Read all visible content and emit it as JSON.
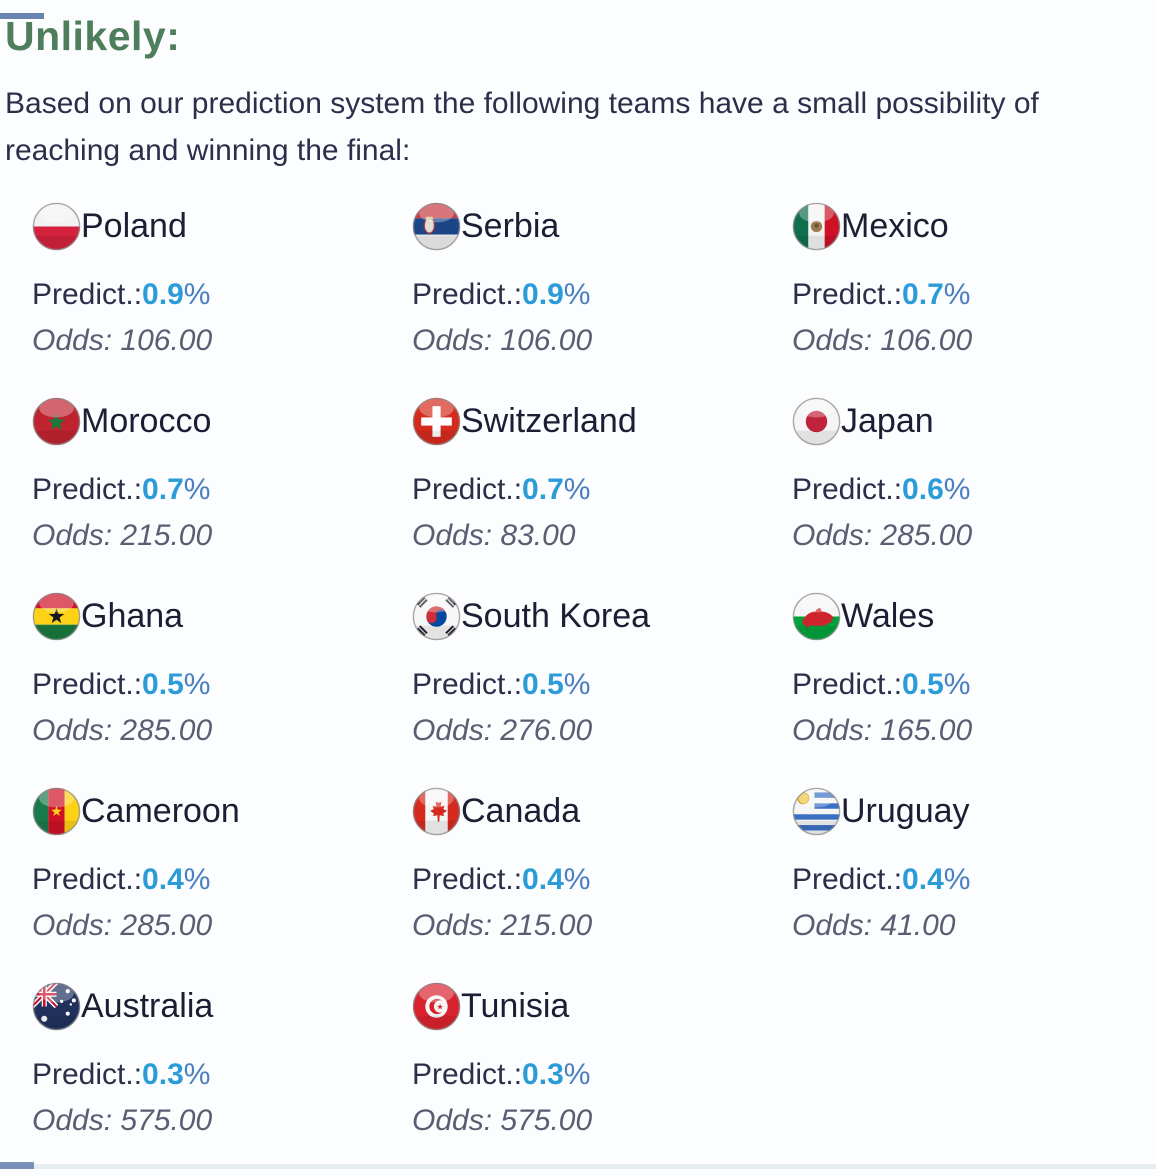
{
  "page": {
    "heading": "Unlikely:",
    "description": "Based on our prediction system the following teams have a small possibility of reaching and winning the final:"
  },
  "labels": {
    "predict": "Predict.:",
    "percent": "%",
    "odds": "Odds:"
  },
  "colors": {
    "heading_green": "#4e7e5c",
    "body_text": "#2e2e4a",
    "team_name": "#1d1d33",
    "predict_value_blue": "#2b9cd8",
    "percent_blue": "#4a7fc0",
    "odds_gray": "#5c5c72",
    "accent_blue": "#46659f"
  },
  "teams": [
    {
      "name": "Poland",
      "flag": "poland",
      "predict_value": "0.9",
      "odds_value": "106.00"
    },
    {
      "name": "Serbia",
      "flag": "serbia",
      "predict_value": "0.9",
      "odds_value": "106.00"
    },
    {
      "name": "Mexico",
      "flag": "mexico",
      "predict_value": "0.7",
      "odds_value": "106.00"
    },
    {
      "name": "Morocco",
      "flag": "morocco",
      "predict_value": "0.7",
      "odds_value": "215.00"
    },
    {
      "name": "Switzerland",
      "flag": "switzerland",
      "predict_value": "0.7",
      "odds_value": "83.00"
    },
    {
      "name": "Japan",
      "flag": "japan",
      "predict_value": "0.6",
      "odds_value": "285.00"
    },
    {
      "name": "Ghana",
      "flag": "ghana",
      "predict_value": "0.5",
      "odds_value": "285.00"
    },
    {
      "name": "South Korea",
      "flag": "southkorea",
      "predict_value": "0.5",
      "odds_value": "276.00"
    },
    {
      "name": "Wales",
      "flag": "wales",
      "predict_value": "0.5",
      "odds_value": "165.00"
    },
    {
      "name": "Cameroon",
      "flag": "cameroon",
      "predict_value": "0.4",
      "odds_value": "285.00"
    },
    {
      "name": "Canada",
      "flag": "canada",
      "predict_value": "0.4",
      "odds_value": "215.00"
    },
    {
      "name": "Uruguay",
      "flag": "uruguay",
      "predict_value": "0.4",
      "odds_value": "41.00"
    },
    {
      "name": "Australia",
      "flag": "australia",
      "predict_value": "0.3",
      "odds_value": "575.00"
    },
    {
      "name": "Tunisia",
      "flag": "tunisia",
      "predict_value": "0.3",
      "odds_value": "575.00"
    }
  ]
}
